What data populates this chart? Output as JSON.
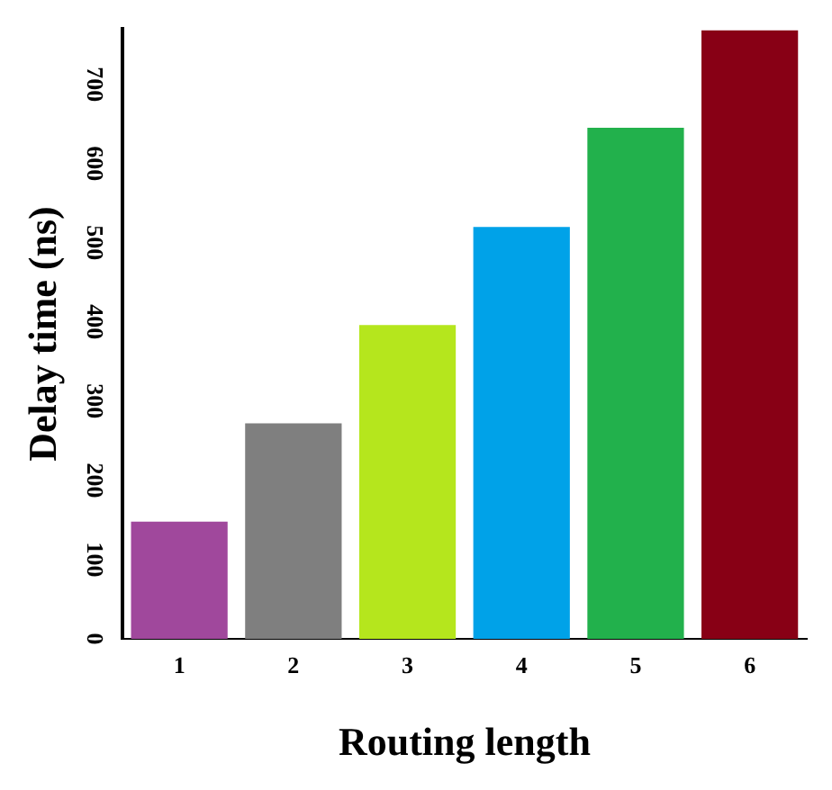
{
  "chart_data": {
    "type": "bar",
    "xlabel": "Routing length",
    "ylabel": "Delay time (ns)",
    "categories": [
      "1",
      "2",
      "3",
      "4",
      "5",
      "6"
    ],
    "values": [
      148,
      272,
      396,
      520,
      645,
      768
    ],
    "colors": [
      "#a0489c",
      "#7f7f7f",
      "#b5e61d",
      "#00a2e8",
      "#22b14c",
      "#880015"
    ],
    "ylim": [
      0,
      770
    ],
    "yticks": [
      0,
      100,
      200,
      300,
      400,
      500,
      600,
      700
    ],
    "grid": false,
    "legend": false
  }
}
